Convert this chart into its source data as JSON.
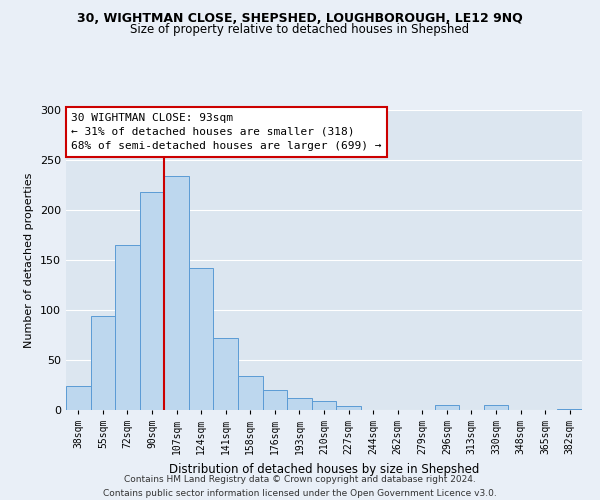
{
  "title": "30, WIGHTMAN CLOSE, SHEPSHED, LOUGHBOROUGH, LE12 9NQ",
  "subtitle": "Size of property relative to detached houses in Shepshed",
  "xlabel": "Distribution of detached houses by size in Shepshed",
  "ylabel": "Number of detached properties",
  "categories": [
    "38sqm",
    "55sqm",
    "72sqm",
    "90sqm",
    "107sqm",
    "124sqm",
    "141sqm",
    "158sqm",
    "176sqm",
    "193sqm",
    "210sqm",
    "227sqm",
    "244sqm",
    "262sqm",
    "279sqm",
    "296sqm",
    "313sqm",
    "330sqm",
    "348sqm",
    "365sqm",
    "382sqm"
  ],
  "values": [
    24,
    94,
    165,
    218,
    234,
    142,
    72,
    34,
    20,
    12,
    9,
    4,
    0,
    0,
    0,
    5,
    0,
    5,
    0,
    0,
    1
  ],
  "bar_color": "#bdd7ee",
  "bar_edge_color": "#5b9bd5",
  "vline_x": 3.5,
  "vline_color": "#cc0000",
  "annotation_title": "30 WIGHTMAN CLOSE: 93sqm",
  "annotation_line1": "← 31% of detached houses are smaller (318)",
  "annotation_line2": "68% of semi-detached houses are larger (699) →",
  "annotation_box_color": "#ffffff",
  "annotation_box_edge_color": "#cc0000",
  "ylim": [
    0,
    300
  ],
  "yticks": [
    0,
    50,
    100,
    150,
    200,
    250,
    300
  ],
  "footer1": "Contains HM Land Registry data © Crown copyright and database right 2024.",
  "footer2": "Contains public sector information licensed under the Open Government Licence v3.0.",
  "bg_color": "#e9eff7",
  "plot_bg_color": "#dce6f0",
  "grid_color": "#ffffff"
}
